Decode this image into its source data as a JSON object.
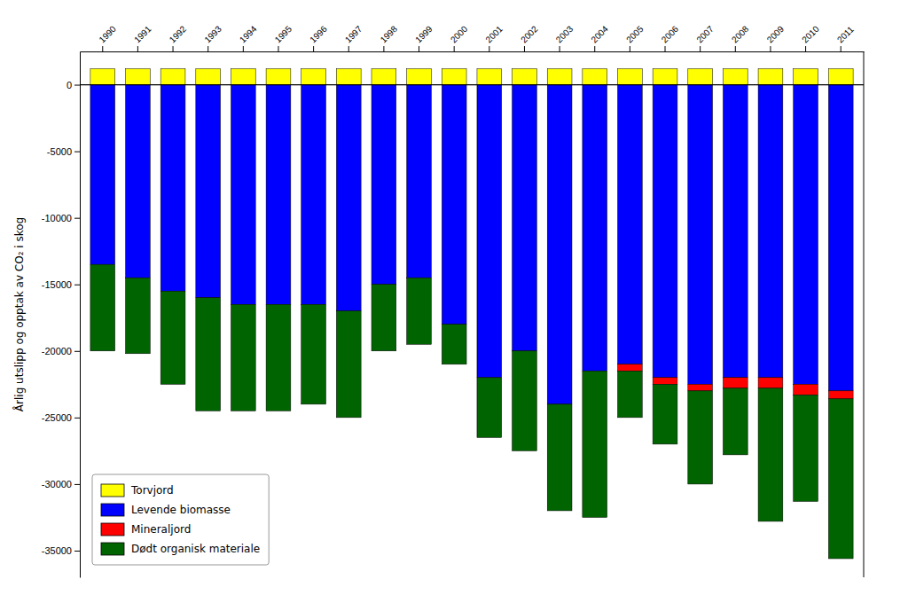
{
  "chart_data": {
    "type": "bar",
    "stacked": true,
    "categories": [
      "1990",
      "1991",
      "1992",
      "1993",
      "1994",
      "1995",
      "1996",
      "1997",
      "1998",
      "1999",
      "2000",
      "2001",
      "2002",
      "2003",
      "2004",
      "2005",
      "2006",
      "2007",
      "2008",
      "2009",
      "2010",
      "2011"
    ],
    "series": [
      {
        "name": "Torvjord",
        "color": "#FFFF00",
        "values": [
          1200,
          1200,
          1200,
          1200,
          1200,
          1200,
          1200,
          1200,
          1200,
          1200,
          1200,
          1200,
          1200,
          1200,
          1200,
          1200,
          1200,
          1200,
          1200,
          1200,
          1200,
          1200
        ]
      },
      {
        "name": "Levende biomasse",
        "color": "#0000FF",
        "values": [
          -13500,
          -14500,
          -15500,
          -16000,
          -16500,
          -16500,
          -16500,
          -17000,
          -15000,
          -14500,
          -18000,
          -22000,
          -20000,
          -24000,
          -21500,
          -21000,
          -22000,
          -22500,
          -22000,
          -22000,
          -22500,
          -23000
        ]
      },
      {
        "name": "Mineraljord",
        "color": "#FF0000",
        "values": [
          0,
          0,
          0,
          0,
          0,
          0,
          0,
          0,
          0,
          0,
          0,
          0,
          0,
          0,
          0,
          -500,
          -500,
          -500,
          -800,
          -800,
          -800,
          -600
        ]
      },
      {
        "name": "Dødt organisk materiale",
        "color": "#006400",
        "values": [
          -6500,
          -5700,
          -7000,
          -8500,
          -8000,
          -8000,
          -7500,
          -8000,
          -5000,
          -5000,
          -3000,
          -4500,
          -7500,
          -8000,
          -11000,
          -3500,
          -4500,
          -7000,
          -5000,
          -10000,
          -8000,
          -12000
        ]
      }
    ],
    "ylabel": "Årlig utslipp og opptak av CO₂ i skog",
    "ylim": [
      -37000,
      2500
    ],
    "yticks": [
      0,
      -5000,
      -10000,
      -15000,
      -20000,
      -25000,
      -30000,
      -35000
    ],
    "legend": "lower left"
  }
}
